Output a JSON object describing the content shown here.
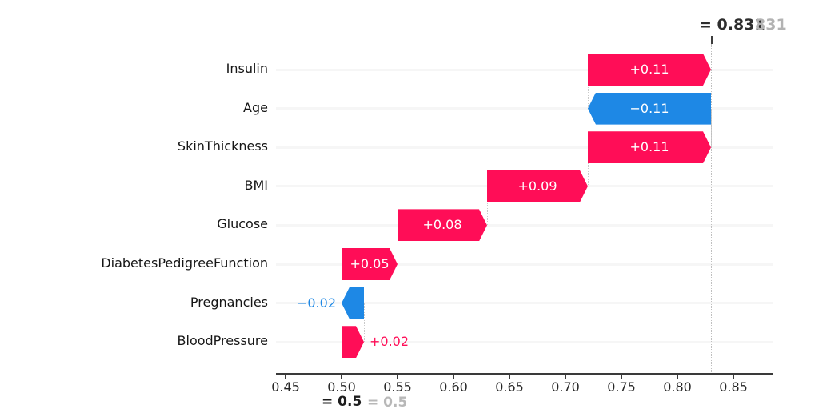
{
  "figure": {
    "fx_annotation": {
      "dark": "= 0.831",
      "ghost": "831"
    },
    "base_annotation": {
      "dark": "= 0.5",
      "ghost": "= 0.5"
    }
  },
  "chart_data": {
    "type": "bar",
    "subtype": "shap-waterfall",
    "orientation": "horizontal",
    "title": "",
    "features": [
      "Insulin",
      "Age",
      "SkinThickness",
      "BMI",
      "Glucose",
      "DiabetesPedigreeFunction",
      "Pregnancies",
      "BloodPressure"
    ],
    "values": [
      0.11,
      -0.11,
      0.11,
      0.09,
      0.08,
      0.05,
      -0.02,
      0.02
    ],
    "value_labels": [
      "+0.11",
      "−0.11",
      "+0.11",
      "+0.09",
      "+0.08",
      "+0.05",
      "−0.02",
      "+0.02"
    ],
    "label_placement": [
      "inside",
      "inside",
      "inside",
      "inside",
      "inside",
      "inside",
      "outside-left",
      "outside-right"
    ],
    "segments": [
      {
        "from": 0.72,
        "to": 0.83
      },
      {
        "from": 0.83,
        "to": 0.72
      },
      {
        "from": 0.72,
        "to": 0.83
      },
      {
        "from": 0.63,
        "to": 0.72
      },
      {
        "from": 0.55,
        "to": 0.63
      },
      {
        "from": 0.5,
        "to": 0.55
      },
      {
        "from": 0.52,
        "to": 0.5
      },
      {
        "from": 0.5,
        "to": 0.52
      }
    ],
    "base_value": 0.5,
    "output_value": 0.831,
    "xlim": [
      0.441,
      0.886
    ],
    "xticks": [
      0.45,
      0.5,
      0.55,
      0.6,
      0.65,
      0.7,
      0.75,
      0.8,
      0.85
    ],
    "xtick_labels": [
      "0.45",
      "0.50",
      "0.55",
      "0.60",
      "0.65",
      "0.70",
      "0.75",
      "0.80",
      "0.85"
    ],
    "grid": false,
    "legend": null,
    "colors": {
      "positive": "#ff0d57",
      "negative": "#1e88e5",
      "axis": "#3a3a3a",
      "dark_text": "#2e2e2e",
      "ghost_text": "#b3b3b3"
    }
  }
}
